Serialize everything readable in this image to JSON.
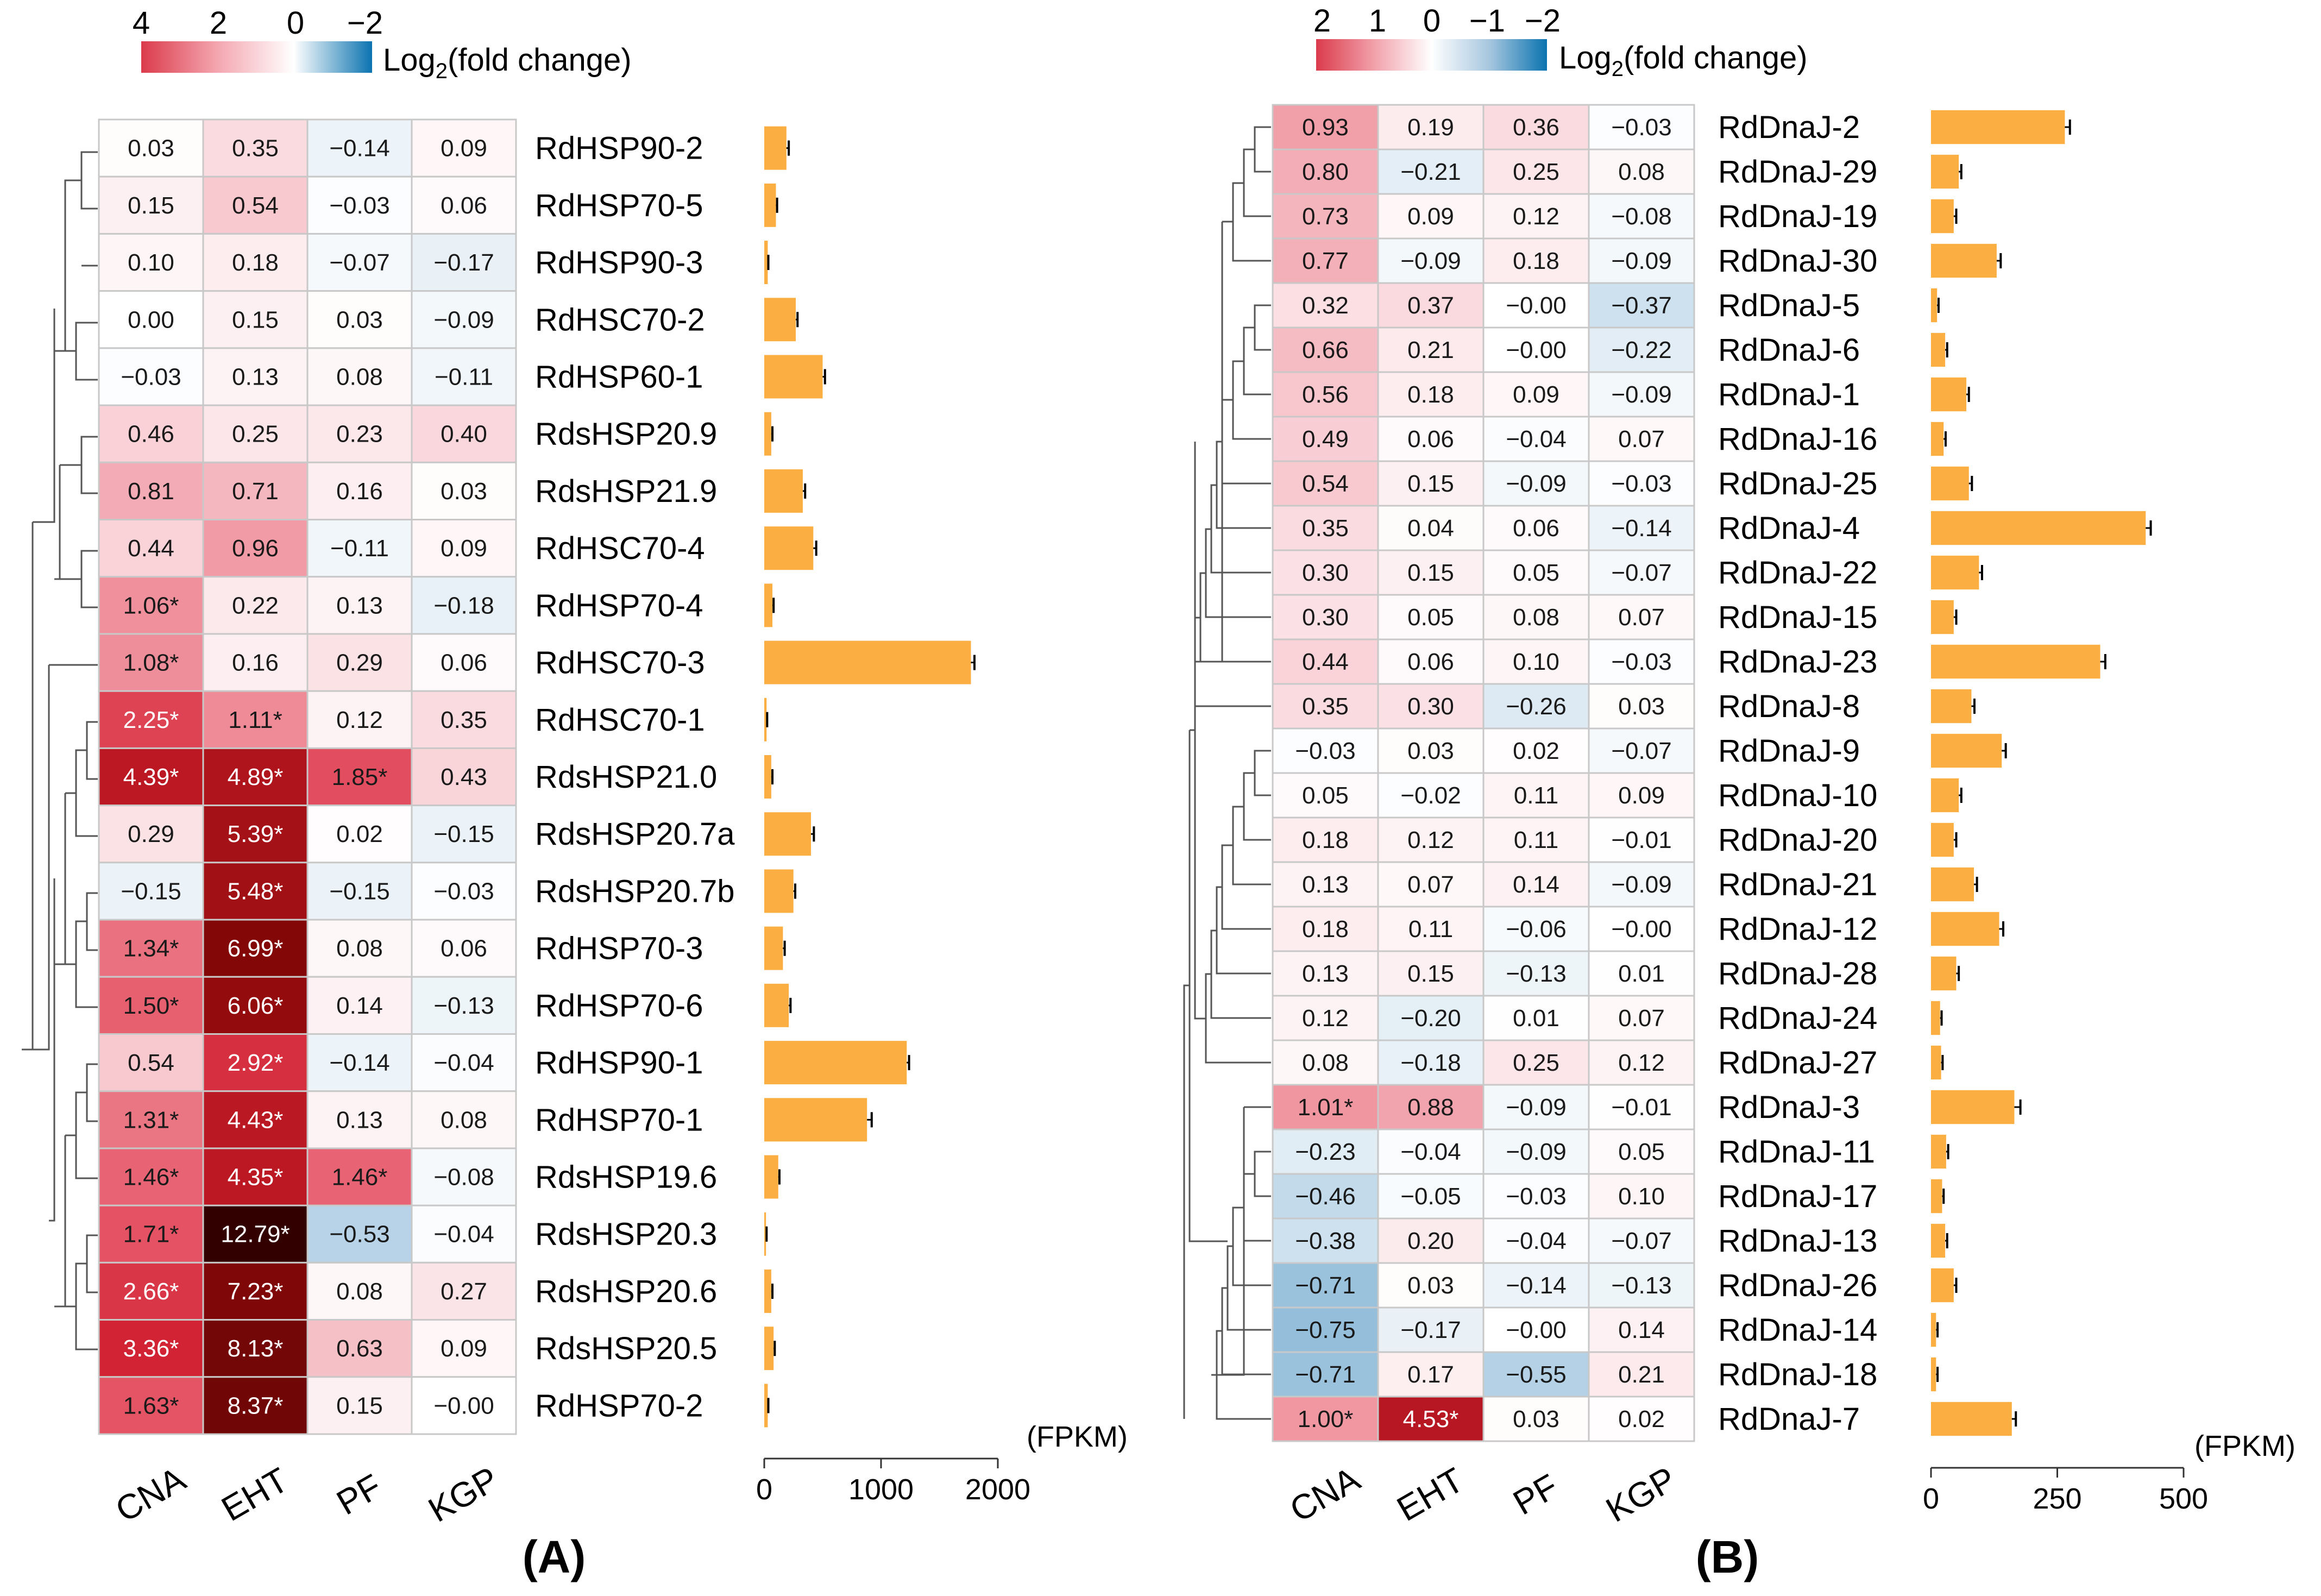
{
  "chart_data": [
    {
      "panel": "(A)",
      "type": "heatmap",
      "legend": {
        "title": "Log2(fold change)",
        "ticks": [
          "4",
          "2",
          "0",
          "−2"
        ],
        "range": [
          4,
          -2
        ]
      },
      "columns": [
        "CNA",
        "EHT",
        "PF",
        "KGP"
      ],
      "rows": [
        "RdHSP90-2",
        "RdHSP70-5",
        "RdHSP90-3",
        "RdHSC70-2",
        "RdHSP60-1",
        "RdsHSP20.9",
        "RdsHSP21.9",
        "RdHSC70-4",
        "RdHSP70-4",
        "RdHSC70-3",
        "RdHSC70-1",
        "RdsHSP21.0",
        "RdsHSP20.7a",
        "RdsHSP20.7b",
        "RdHSP70-3",
        "RdHSP70-6",
        "RdHSP90-1",
        "RdHSP70-1",
        "RdsHSP19.6",
        "RdsHSP20.3",
        "RdsHSP20.6",
        "RdsHSP20.5",
        "RdHSP70-2"
      ],
      "values": [
        [
          0.03,
          0.35,
          -0.14,
          0.09
        ],
        [
          0.15,
          0.54,
          -0.03,
          0.06
        ],
        [
          0.1,
          0.18,
          -0.07,
          -0.17
        ],
        [
          0.0,
          0.15,
          0.03,
          -0.09
        ],
        [
          -0.03,
          0.13,
          0.08,
          -0.11
        ],
        [
          0.46,
          0.25,
          0.23,
          0.4
        ],
        [
          0.81,
          0.71,
          0.16,
          0.03
        ],
        [
          0.44,
          0.96,
          -0.11,
          0.09
        ],
        [
          1.06,
          0.22,
          0.13,
          -0.18
        ],
        [
          1.08,
          0.16,
          0.29,
          0.06
        ],
        [
          2.25,
          1.11,
          0.12,
          0.35
        ],
        [
          4.39,
          4.89,
          1.85,
          0.43
        ],
        [
          0.29,
          5.39,
          0.02,
          -0.15
        ],
        [
          -0.15,
          5.48,
          -0.15,
          -0.03
        ],
        [
          1.34,
          6.99,
          0.08,
          0.06
        ],
        [
          1.5,
          6.06,
          0.14,
          -0.13
        ],
        [
          0.54,
          2.92,
          -0.14,
          -0.04
        ],
        [
          1.31,
          4.43,
          0.13,
          0.08
        ],
        [
          1.46,
          4.35,
          1.46,
          -0.08
        ],
        [
          1.71,
          12.79,
          -0.53,
          -0.04
        ],
        [
          2.66,
          7.23,
          0.08,
          0.27
        ],
        [
          3.36,
          8.13,
          0.63,
          0.09
        ],
        [
          1.63,
          8.37,
          0.15,
          -0.0
        ]
      ],
      "labels": [
        [
          "0.03",
          "0.35",
          "−0.14",
          "0.09"
        ],
        [
          "0.15",
          "0.54",
          "−0.03",
          "0.06"
        ],
        [
          "0.10",
          "0.18",
          "−0.07",
          "−0.17"
        ],
        [
          "0.00",
          "0.15",
          "0.03",
          "−0.09"
        ],
        [
          "−0.03",
          "0.13",
          "0.08",
          "−0.11"
        ],
        [
          "0.46",
          "0.25",
          "0.23",
          "0.40"
        ],
        [
          "0.81",
          "0.71",
          "0.16",
          "0.03"
        ],
        [
          "0.44",
          "0.96",
          "−0.11",
          "0.09"
        ],
        [
          "1.06*",
          "0.22",
          "0.13",
          "−0.18"
        ],
        [
          "1.08*",
          "0.16",
          "0.29",
          "0.06"
        ],
        [
          "2.25*",
          "1.11*",
          "0.12",
          "0.35"
        ],
        [
          "4.39*",
          "4.89*",
          "1.85*",
          "0.43"
        ],
        [
          "0.29",
          "5.39*",
          "0.02",
          "−0.15"
        ],
        [
          "−0.15",
          "5.48*",
          "−0.15",
          "−0.03"
        ],
        [
          "1.34*",
          "6.99*",
          "0.08",
          "0.06"
        ],
        [
          "1.50*",
          "6.06*",
          "0.14",
          "−0.13"
        ],
        [
          "0.54",
          "2.92*",
          "−0.14",
          "−0.04"
        ],
        [
          "1.31*",
          "4.43*",
          "0.13",
          "0.08"
        ],
        [
          "1.46*",
          "4.35*",
          "1.46*",
          "−0.08"
        ],
        [
          "1.71*",
          "12.79*",
          "−0.53",
          "−0.04"
        ],
        [
          "2.66*",
          "7.23*",
          "0.08",
          "0.27"
        ],
        [
          "3.36*",
          "8.13*",
          "0.63",
          "0.09"
        ],
        [
          "1.63*",
          "8.37*",
          "0.15",
          "−0.00"
        ]
      ],
      "bars": {
        "type": "bar",
        "unit": "(FPKM)",
        "xlim": [
          0,
          2000
        ],
        "ticks": [
          0,
          1000,
          2000
        ],
        "values": [
          190,
          100,
          30,
          270,
          500,
          60,
          330,
          420,
          70,
          1770,
          20,
          60,
          400,
          250,
          160,
          210,
          1220,
          880,
          120,
          15,
          60,
          80,
          30
        ],
        "errors": [
          20,
          10,
          5,
          15,
          20,
          10,
          20,
          25,
          10,
          30,
          5,
          10,
          25,
          15,
          15,
          15,
          20,
          40,
          10,
          5,
          10,
          10,
          5
        ]
      }
    },
    {
      "panel": "(B)",
      "type": "heatmap",
      "legend": {
        "title": "Log2(fold change)",
        "ticks": [
          "2",
          "1",
          "0",
          "−1",
          "−2"
        ],
        "range": [
          2,
          -2
        ]
      },
      "columns": [
        "CNA",
        "EHT",
        "PF",
        "KGP"
      ],
      "rows": [
        "RdDnaJ-2",
        "RdDnaJ-29",
        "RdDnaJ-19",
        "RdDnaJ-30",
        "RdDnaJ-5",
        "RdDnaJ-6",
        "RdDnaJ-1",
        "RdDnaJ-16",
        "RdDnaJ-25",
        "RdDnaJ-4",
        "RdDnaJ-22",
        "RdDnaJ-15",
        "RdDnaJ-23",
        "RdDnaJ-8",
        "RdDnaJ-9",
        "RdDnaJ-10",
        "RdDnaJ-20",
        "RdDnaJ-21",
        "RdDnaJ-12",
        "RdDnaJ-28",
        "RdDnaJ-24",
        "RdDnaJ-27",
        "RdDnaJ-3",
        "RdDnaJ-11",
        "RdDnaJ-17",
        "RdDnaJ-13",
        "RdDnaJ-26",
        "RdDnaJ-14",
        "RdDnaJ-18",
        "RdDnaJ-7"
      ],
      "values": [
        [
          0.93,
          0.19,
          0.36,
          -0.03
        ],
        [
          0.8,
          -0.21,
          0.25,
          0.08
        ],
        [
          0.73,
          0.09,
          0.12,
          -0.08
        ],
        [
          0.77,
          -0.09,
          0.18,
          -0.09
        ],
        [
          0.32,
          0.37,
          -0.0,
          -0.37
        ],
        [
          0.66,
          0.21,
          -0.0,
          -0.22
        ],
        [
          0.56,
          0.18,
          0.09,
          -0.09
        ],
        [
          0.49,
          0.06,
          -0.04,
          0.07
        ],
        [
          0.54,
          0.15,
          -0.09,
          -0.03
        ],
        [
          0.35,
          0.04,
          0.06,
          -0.14
        ],
        [
          0.3,
          0.15,
          0.05,
          -0.07
        ],
        [
          0.3,
          0.05,
          0.08,
          0.07
        ],
        [
          0.44,
          0.06,
          0.1,
          -0.03
        ],
        [
          0.35,
          0.3,
          -0.26,
          0.03
        ],
        [
          -0.03,
          0.03,
          0.02,
          -0.07
        ],
        [
          0.05,
          -0.02,
          0.11,
          0.09
        ],
        [
          0.18,
          0.12,
          0.11,
          -0.01
        ],
        [
          0.13,
          0.07,
          0.14,
          -0.09
        ],
        [
          0.18,
          0.11,
          -0.06,
          -0.0
        ],
        [
          0.13,
          0.15,
          -0.13,
          0.01
        ],
        [
          0.12,
          -0.2,
          0.01,
          0.07
        ],
        [
          0.08,
          -0.18,
          0.25,
          0.12
        ],
        [
          1.01,
          0.88,
          -0.09,
          -0.01
        ],
        [
          -0.23,
          -0.04,
          -0.09,
          0.05
        ],
        [
          -0.46,
          -0.05,
          -0.03,
          0.1
        ],
        [
          -0.38,
          0.2,
          -0.04,
          -0.07
        ],
        [
          -0.71,
          0.03,
          -0.14,
          -0.13
        ],
        [
          -0.75,
          -0.17,
          -0.0,
          0.14
        ],
        [
          -0.71,
          0.17,
          -0.55,
          0.21
        ],
        [
          1.0,
          4.53,
          0.03,
          0.02
        ]
      ],
      "labels": [
        [
          "0.93",
          "0.19",
          "0.36",
          "−0.03"
        ],
        [
          "0.80",
          "−0.21",
          "0.25",
          "0.08"
        ],
        [
          "0.73",
          "0.09",
          "0.12",
          "−0.08"
        ],
        [
          "0.77",
          "−0.09",
          "0.18",
          "−0.09"
        ],
        [
          "0.32",
          "0.37",
          "−0.00",
          "−0.37"
        ],
        [
          "0.66",
          "0.21",
          "−0.00",
          "−0.22"
        ],
        [
          "0.56",
          "0.18",
          "0.09",
          "−0.09"
        ],
        [
          "0.49",
          "0.06",
          "−0.04",
          "0.07"
        ],
        [
          "0.54",
          "0.15",
          "−0.09",
          "−0.03"
        ],
        [
          "0.35",
          "0.04",
          "0.06",
          "−0.14"
        ],
        [
          "0.30",
          "0.15",
          "0.05",
          "−0.07"
        ],
        [
          "0.30",
          "0.05",
          "0.08",
          "0.07"
        ],
        [
          "0.44",
          "0.06",
          "0.10",
          "−0.03"
        ],
        [
          "0.35",
          "0.30",
          "−0.26",
          "0.03"
        ],
        [
          "−0.03",
          "0.03",
          "0.02",
          "−0.07"
        ],
        [
          "0.05",
          "−0.02",
          "0.11",
          "0.09"
        ],
        [
          "0.18",
          "0.12",
          "0.11",
          "−0.01"
        ],
        [
          "0.13",
          "0.07",
          "0.14",
          "−0.09"
        ],
        [
          "0.18",
          "0.11",
          "−0.06",
          "−0.00"
        ],
        [
          "0.13",
          "0.15",
          "−0.13",
          "0.01"
        ],
        [
          "0.12",
          "−0.20",
          "0.01",
          "0.07"
        ],
        [
          "0.08",
          "−0.18",
          "0.25",
          "0.12"
        ],
        [
          "1.01*",
          "0.88",
          "−0.09",
          "−0.01"
        ],
        [
          "−0.23",
          "−0.04",
          "−0.09",
          "0.05"
        ],
        [
          "−0.46",
          "−0.05",
          "−0.03",
          "0.10"
        ],
        [
          "−0.38",
          "0.20",
          "−0.04",
          "−0.07"
        ],
        [
          "−0.71",
          "0.03",
          "−0.14",
          "−0.13"
        ],
        [
          "−0.75",
          "−0.17",
          "−0.00",
          "0.14"
        ],
        [
          "−0.71",
          "0.17",
          "−0.55",
          "0.21"
        ],
        [
          "1.00*",
          "4.53*",
          "0.03",
          "0.02"
        ]
      ],
      "bars": {
        "type": "bar",
        "unit": "(FPKM)",
        "xlim": [
          0,
          500
        ],
        "ticks": [
          0,
          250,
          500
        ],
        "values": [
          265,
          55,
          45,
          130,
          12,
          28,
          70,
          25,
          75,
          425,
          95,
          45,
          335,
          80,
          140,
          55,
          45,
          85,
          135,
          50,
          18,
          20,
          165,
          30,
          22,
          28,
          45,
          10,
          10,
          160
        ],
        "errors": [
          10,
          5,
          5,
          8,
          3,
          4,
          5,
          4,
          6,
          10,
          6,
          5,
          10,
          6,
          8,
          5,
          5,
          6,
          8,
          5,
          3,
          3,
          12,
          4,
          3,
          4,
          5,
          3,
          3,
          8
        ]
      }
    }
  ],
  "colors": {
    "bar": "#FBAF43",
    "pos_scale": [
      "#ffffff",
      "#f9c7cd",
      "#e55566",
      "#cf1f2f",
      "#8c0a0a",
      "#3a0000"
    ],
    "neg_scale": [
      "#ffffff",
      "#aac9e0",
      "#0b73b0"
    ],
    "grid": "#c8c8c8"
  }
}
